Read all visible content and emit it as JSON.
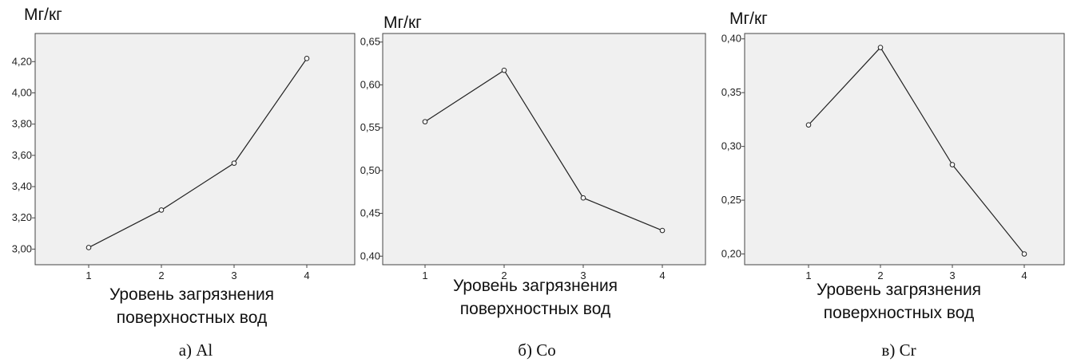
{
  "chart_data": [
    {
      "type": "line",
      "ylabel": "Мг/кг",
      "xlabel_lines": [
        "Уровень загрязнения",
        "поверхностных вод"
      ],
      "caption": "а) Al",
      "x": [
        1,
        2,
        3,
        4
      ],
      "values": [
        3.01,
        3.25,
        3.55,
        4.22
      ],
      "ylim": [
        2.9,
        4.38
      ],
      "yticks": [
        3.0,
        3.2,
        3.4,
        3.6,
        3.8,
        4.0,
        4.2
      ],
      "ytick_labels": [
        "3,00",
        "3,20",
        "3,40",
        "3,60",
        "3,80",
        "4,00",
        "4,20"
      ],
      "xtick_labels": [
        "1",
        "2",
        "3",
        "4"
      ],
      "grid": false
    },
    {
      "type": "line",
      "ylabel": "Мг/кг",
      "xlabel_lines": [
        "Уровень загрязнения",
        "поверхностных вод"
      ],
      "caption": "б) Co",
      "x": [
        1,
        2,
        3,
        4
      ],
      "values": [
        0.557,
        0.617,
        0.468,
        0.43
      ],
      "ylim": [
        0.39,
        0.66
      ],
      "yticks": [
        0.4,
        0.45,
        0.5,
        0.55,
        0.6,
        0.65
      ],
      "ytick_labels": [
        "0,40",
        "0,45",
        "0,50",
        "0,55",
        "0,60",
        "0,65"
      ],
      "xtick_labels": [
        "1",
        "2",
        "3",
        "4"
      ],
      "grid": false
    },
    {
      "type": "line",
      "ylabel": "Мг/кг",
      "xlabel_lines": [
        "Уровень загрязнения",
        "поверхностных вод"
      ],
      "caption": "в) Cr",
      "x": [
        1,
        2,
        3,
        4
      ],
      "values": [
        0.32,
        0.392,
        0.283,
        0.2
      ],
      "ylim": [
        0.19,
        0.405
      ],
      "yticks": [
        0.2,
        0.25,
        0.3,
        0.35,
        0.4
      ],
      "ytick_labels": [
        "0,20",
        "0,25",
        "0,30",
        "0,35",
        "0,40"
      ],
      "xtick_labels": [
        "1",
        "2",
        "3",
        "4"
      ],
      "grid": false
    }
  ]
}
